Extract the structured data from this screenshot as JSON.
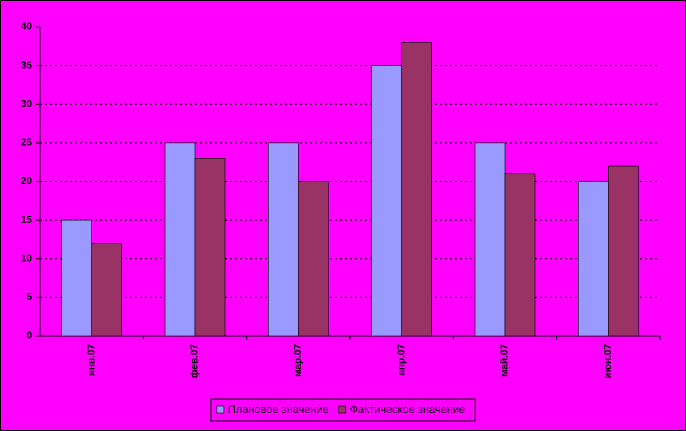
{
  "chart_data": {
    "type": "bar",
    "categories": [
      "янв.07",
      "фев.07",
      "мар.07",
      "апр.07",
      "май.07",
      "июн.07"
    ],
    "series": [
      {
        "name": "Плановое значение",
        "color": "#9999ff",
        "values": [
          15,
          25,
          25,
          35,
          25,
          20
        ]
      },
      {
        "name": "Фактическое значение",
        "color": "#993366",
        "values": [
          12,
          23,
          20,
          38,
          21,
          22
        ]
      }
    ],
    "ylim": [
      0,
      40
    ],
    "yticks": [
      0,
      5,
      10,
      15,
      20,
      25,
      30,
      35,
      40
    ],
    "grid": true,
    "legend": "bottom"
  }
}
